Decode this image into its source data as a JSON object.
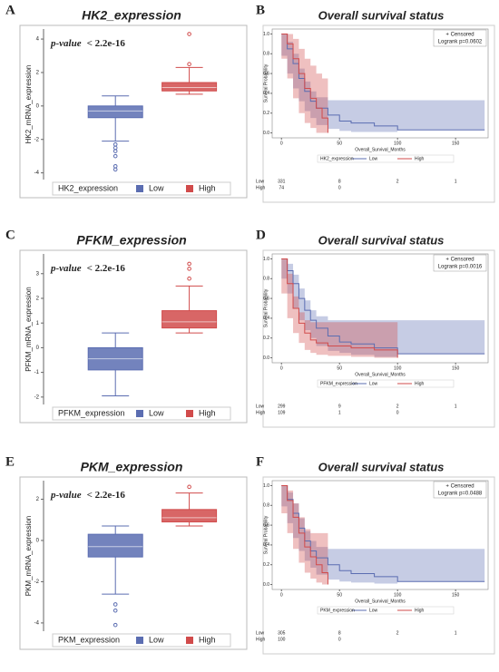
{
  "chart_data": [
    {
      "type": "box",
      "label": "A",
      "title": "HK2_expression",
      "ylabel": "HK2_mRNA_expression",
      "p_label": "p-value",
      "p_text": "< 2.2e-16",
      "legend_title": "HK2_expression",
      "ylim": [
        -4.4,
        4.6
      ],
      "yticks": [
        -4,
        -2,
        0,
        2,
        4
      ],
      "boxes": [
        {
          "name": "Low",
          "color": "#5b6db1",
          "whislo": -2.1,
          "q1": -0.7,
          "med": -0.3,
          "q3": 0.0,
          "whishi": 0.6,
          "fliers": [
            -2.3,
            -2.5,
            -2.7,
            -3.0,
            -3.6,
            -3.8
          ]
        },
        {
          "name": "High",
          "color": "#d14b4b",
          "whislo": 0.7,
          "q1": 0.9,
          "med": 1.1,
          "q3": 1.4,
          "whishi": 2.3,
          "fliers": [
            2.5,
            4.3
          ]
        }
      ]
    },
    {
      "type": "survival",
      "label": "B",
      "title": "Overall survival status",
      "censor_label": "+ Censored",
      "logrank": "Logrank p=0.0602",
      "xlabel": "Overall_Survival_Months",
      "ylabel": "Survival Probability",
      "legend_title": "HK2_expression",
      "xlim": [
        -8,
        178
      ],
      "xticks": [
        0,
        50,
        100,
        150
      ],
      "ylim": [
        -0.05,
        1.05
      ],
      "yticks": [
        {
          "value": 0,
          "label": "0.0"
        },
        {
          "value": 0.2,
          "label": "0.2"
        },
        {
          "value": 0.4,
          "label": "0.4"
        },
        {
          "value": 0.6,
          "label": "0.6"
        },
        {
          "value": 0.8,
          "label": "0.8"
        },
        {
          "value": 1,
          "label": "1.0"
        }
      ],
      "series": [
        {
          "name": "Low",
          "color": "#5b6db1",
          "x": [
            0,
            5,
            10,
            15,
            20,
            25,
            30,
            40,
            50,
            60,
            80,
            100,
            175
          ],
          "values": [
            1,
            0.85,
            0.7,
            0.55,
            0.42,
            0.32,
            0.25,
            0.18,
            0.12,
            0.1,
            0.07,
            0.03,
            0.03
          ],
          "upper": [
            1,
            0.92,
            0.8,
            0.65,
            0.52,
            0.42,
            0.36,
            0.33,
            0.33,
            0.33,
            0.33,
            0.33,
            0.03
          ],
          "lower": [
            1,
            0.78,
            0.6,
            0.45,
            0.32,
            0.22,
            0.15,
            0.08,
            0.04,
            0.02,
            0.01,
            0.01,
            0.03
          ],
          "at_risk": [
            331,
            8,
            2,
            1
          ]
        },
        {
          "name": "High",
          "color": "#d14b4b",
          "x": [
            0,
            5,
            10,
            15,
            20,
            25,
            30,
            35,
            40
          ],
          "values": [
            1,
            0.9,
            0.75,
            0.6,
            0.45,
            0.35,
            0.25,
            0.15,
            0.0
          ],
          "upper": [
            1,
            1,
            0.95,
            0.85,
            0.75,
            0.68,
            0.6,
            0.55,
            0.55
          ],
          "lower": [
            1,
            0.75,
            0.55,
            0.35,
            0.2,
            0.1,
            0.05,
            0,
            0
          ],
          "at_risk": [
            74,
            0
          ]
        }
      ]
    },
    {
      "type": "box",
      "label": "C",
      "title": "PFKM_expression",
      "ylabel": "PFKM_mRNA_expression",
      "p_label": "p-value",
      "p_text": "< 2.2e-16",
      "legend_title": "PFKM_expression",
      "ylim": [
        -2.3,
        3.8
      ],
      "yticks": [
        -2,
        -1,
        0,
        1,
        2,
        3
      ],
      "boxes": [
        {
          "name": "Low",
          "color": "#5b6db1",
          "whislo": -1.95,
          "q1": -0.9,
          "med": -0.45,
          "q3": 0.0,
          "whishi": 0.6,
          "fliers": []
        },
        {
          "name": "High",
          "color": "#d14b4b",
          "whislo": 0.6,
          "q1": 0.8,
          "med": 1.05,
          "q3": 1.5,
          "whishi": 2.5,
          "fliers": [
            2.8,
            3.2,
            3.4
          ]
        }
      ]
    },
    {
      "type": "survival",
      "label": "D",
      "title": "Overall survival status",
      "censor_label": "+ Censored",
      "logrank": "Logrank p=0.0016",
      "xlabel": "Overall_Survival_Months",
      "ylabel": "Survival Probability",
      "legend_title": "PFKM_expression",
      "xlim": [
        -8,
        178
      ],
      "xticks": [
        0,
        50,
        100,
        150
      ],
      "ylim": [
        -0.05,
        1.05
      ],
      "yticks": [
        {
          "value": 0,
          "label": "0.0"
        },
        {
          "value": 0.2,
          "label": "0.2"
        },
        {
          "value": 0.4,
          "label": "0.4"
        },
        {
          "value": 0.6,
          "label": "0.6"
        },
        {
          "value": 0.8,
          "label": "0.8"
        },
        {
          "value": 1,
          "label": "1.0"
        }
      ],
      "series": [
        {
          "name": "Low",
          "color": "#5b6db1",
          "x": [
            0,
            5,
            10,
            15,
            20,
            25,
            30,
            40,
            50,
            60,
            80,
            100,
            175
          ],
          "values": [
            1,
            0.88,
            0.75,
            0.6,
            0.48,
            0.38,
            0.3,
            0.22,
            0.16,
            0.14,
            0.1,
            0.04,
            0.04
          ],
          "upper": [
            1,
            0.95,
            0.84,
            0.7,
            0.58,
            0.48,
            0.42,
            0.38,
            0.38,
            0.38,
            0.38,
            0.38,
            0.04
          ],
          "lower": [
            1,
            0.8,
            0.65,
            0.5,
            0.38,
            0.28,
            0.2,
            0.12,
            0.07,
            0.05,
            0.03,
            0.01,
            0.04
          ],
          "at_risk": [
            299,
            9,
            2,
            1
          ]
        },
        {
          "name": "High",
          "color": "#d14b4b",
          "x": [
            0,
            5,
            10,
            15,
            20,
            25,
            30,
            40,
            60,
            80,
            100
          ],
          "values": [
            1,
            0.75,
            0.5,
            0.35,
            0.25,
            0.18,
            0.15,
            0.12,
            0.1,
            0.08,
            0.0
          ],
          "upper": [
            1,
            0.85,
            0.62,
            0.46,
            0.38,
            0.36,
            0.36,
            0.36,
            0.36,
            0.36,
            0.36
          ],
          "lower": [
            1,
            0.65,
            0.4,
            0.25,
            0.15,
            0.08,
            0.05,
            0.03,
            0.02,
            0.01,
            0.0
          ],
          "at_risk": [
            109,
            1,
            0
          ]
        }
      ]
    },
    {
      "type": "box",
      "label": "E",
      "title": "PKM_expression",
      "ylabel": "PKM_mRNA_expression",
      "p_label": "p-value",
      "p_text": "< 2.2e-16",
      "legend_title": "PKM_expression",
      "ylim": [
        -4.4,
        2.9
      ],
      "yticks": [
        -4,
        -2,
        0,
        2
      ],
      "boxes": [
        {
          "name": "Low",
          "color": "#5b6db1",
          "whislo": -2.6,
          "q1": -0.8,
          "med": -0.3,
          "q3": 0.3,
          "whishi": 0.7,
          "fliers": [
            -3.1,
            -3.4,
            -4.1
          ]
        },
        {
          "name": "High",
          "color": "#d14b4b",
          "whislo": 0.7,
          "q1": 0.9,
          "med": 1.1,
          "q3": 1.5,
          "whishi": 2.3,
          "fliers": [
            2.6
          ]
        }
      ]
    },
    {
      "type": "survival",
      "label": "F",
      "title": "Overall survival status",
      "censor_label": "+ Censored",
      "logrank": "Logrank p=0.0488",
      "xlabel": "Overall_Survival_Months",
      "ylabel": "Survival Probability",
      "legend_title": "PKM_expression",
      "xlim": [
        -8,
        178
      ],
      "xticks": [
        0,
        50,
        100,
        150
      ],
      "ylim": [
        -0.05,
        1.05
      ],
      "yticks": [
        {
          "value": 0,
          "label": "0.0"
        },
        {
          "value": 0.2,
          "label": "0.2"
        },
        {
          "value": 0.4,
          "label": "0.4"
        },
        {
          "value": 0.6,
          "label": "0.6"
        },
        {
          "value": 0.8,
          "label": "0.8"
        },
        {
          "value": 1,
          "label": "1.0"
        }
      ],
      "series": [
        {
          "name": "Low",
          "color": "#5b6db1",
          "x": [
            0,
            5,
            10,
            15,
            20,
            25,
            30,
            40,
            50,
            60,
            80,
            100,
            175
          ],
          "values": [
            1,
            0.86,
            0.72,
            0.57,
            0.44,
            0.34,
            0.27,
            0.2,
            0.14,
            0.11,
            0.08,
            0.03,
            0.03
          ],
          "upper": [
            1,
            0.93,
            0.82,
            0.67,
            0.54,
            0.44,
            0.38,
            0.36,
            0.36,
            0.36,
            0.36,
            0.36,
            0.03
          ],
          "lower": [
            1,
            0.79,
            0.62,
            0.47,
            0.34,
            0.24,
            0.17,
            0.1,
            0.05,
            0.03,
            0.02,
            0.01,
            0.03
          ],
          "at_risk": [
            305,
            8,
            2,
            1
          ]
        },
        {
          "name": "High",
          "color": "#d14b4b",
          "x": [
            0,
            5,
            10,
            15,
            20,
            25,
            30,
            35,
            40
          ],
          "values": [
            1,
            0.85,
            0.68,
            0.52,
            0.38,
            0.28,
            0.2,
            0.12,
            0.0
          ],
          "upper": [
            1,
            0.95,
            0.82,
            0.68,
            0.56,
            0.52,
            0.52,
            0.52,
            0.52
          ],
          "lower": [
            1,
            0.72,
            0.52,
            0.36,
            0.22,
            0.12,
            0.06,
            0.02,
            0.0
          ],
          "at_risk": [
            100,
            0
          ]
        }
      ]
    }
  ]
}
